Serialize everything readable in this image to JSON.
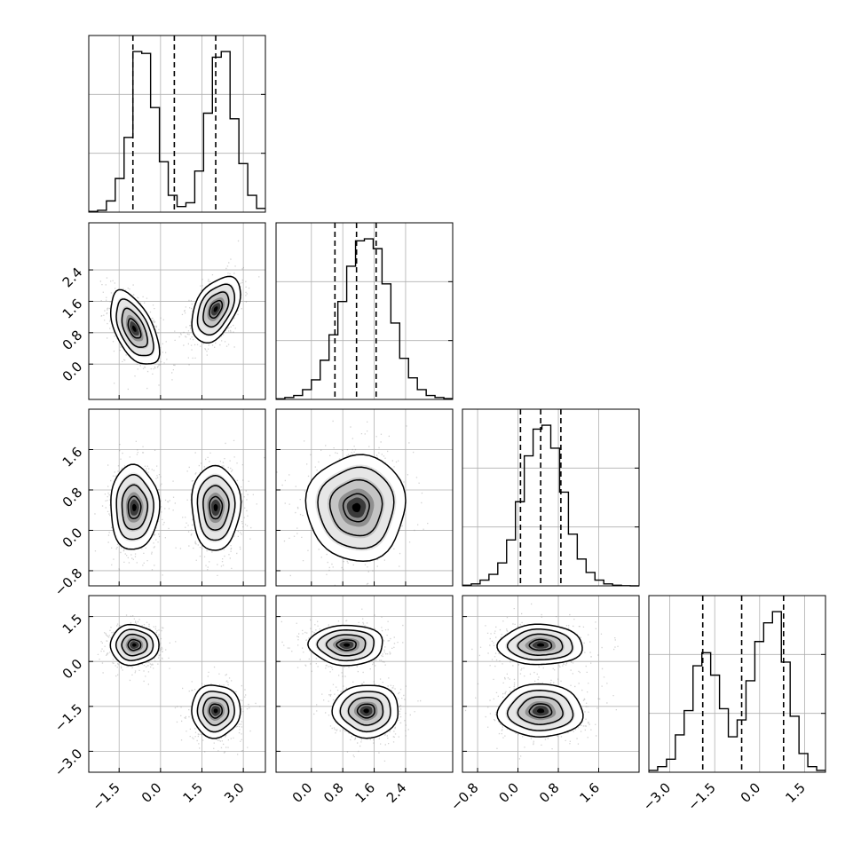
{
  "chart_data": {
    "type": "corner",
    "variables": 4,
    "ranges": [
      [
        -2.6,
        3.8
      ],
      [
        -0.9,
        3.6
      ],
      [
        -1.1,
        2.4
      ],
      [
        -3.7,
        2.2
      ]
    ],
    "ticks": [
      {
        "values": [
          -1.5,
          0.0,
          1.5,
          3.0
        ],
        "labels": [
          "−1.5",
          "0.0",
          "1.5",
          "3.0"
        ]
      },
      {
        "values": [
          0.0,
          0.8,
          1.6,
          2.4
        ],
        "labels": [
          "0.0",
          "0.8",
          "1.6",
          "2.4"
        ]
      },
      {
        "values": [
          -0.8,
          0.0,
          0.8,
          1.6
        ],
        "labels": [
          "−0.8",
          "0.0",
          "0.8",
          "1.6"
        ]
      },
      {
        "values": [
          -3.0,
          -1.5,
          0.0,
          1.5
        ],
        "labels": [
          "−3.0",
          "−1.5",
          "0.0",
          "1.5"
        ]
      }
    ],
    "quantiles": [
      [
        -1.0,
        0.5,
        2.0
      ],
      [
        0.6,
        1.15,
        1.65
      ],
      [
        0.05,
        0.45,
        0.85
      ],
      [
        -1.9,
        -0.6,
        0.8
      ]
    ],
    "histograms": [
      {
        "bins": [
          -2.6,
          -2.28,
          -1.96,
          -1.64,
          -1.32,
          -1.0,
          -0.68,
          -0.36,
          -0.04,
          0.28,
          0.6,
          0.92,
          1.24,
          1.56,
          1.88,
          2.2,
          2.52,
          2.84,
          3.16,
          3.48,
          3.8
        ],
        "counts": [
          0.4,
          1,
          6,
          18,
          40,
          86,
          85,
          56,
          27,
          9,
          3,
          5,
          22,
          53,
          83,
          86,
          50,
          26,
          9,
          2
        ]
      },
      {
        "bins": [
          -0.9,
          -0.675,
          -0.45,
          -0.225,
          0.0,
          0.225,
          0.45,
          0.675,
          0.9,
          1.125,
          1.35,
          1.575,
          1.8,
          2.025,
          2.25,
          2.475,
          2.7,
          2.925,
          3.15,
          3.375,
          3.6
        ],
        "counts": [
          0.3,
          1,
          2,
          5,
          10,
          20,
          33,
          50,
          68,
          81,
          82,
          77,
          59,
          39,
          21,
          11,
          5,
          2,
          1,
          0.4
        ]
      },
      {
        "bins": [
          -1.1,
          -0.925,
          -0.75,
          -0.575,
          -0.4,
          -0.225,
          -0.05,
          0.125,
          0.3,
          0.475,
          0.65,
          0.825,
          1.0,
          1.175,
          1.35,
          1.525,
          1.7,
          1.875,
          2.05,
          2.225,
          2.4
        ],
        "counts": [
          0.3,
          1,
          3,
          6,
          12,
          24,
          44,
          68,
          82,
          84,
          72,
          49,
          27,
          14,
          7,
          3,
          1,
          0.3,
          0.1,
          0
        ]
      },
      {
        "bins": [
          -3.7,
          -3.405,
          -3.11,
          -2.815,
          -2.52,
          -2.225,
          -1.93,
          -1.635,
          -1.34,
          -1.045,
          -0.75,
          -0.455,
          -0.16,
          0.135,
          0.43,
          0.725,
          1.02,
          1.315,
          1.61,
          1.905,
          2.2
        ],
        "counts": [
          1,
          3,
          7,
          20,
          33,
          57,
          64,
          52,
          34,
          19,
          28,
          49,
          70,
          80,
          86,
          59,
          30,
          10,
          3,
          1
        ]
      }
    ],
    "clusters": [
      {
        "mean": [
          -0.95,
          0.9,
          0.45,
          0.55
        ],
        "sd": [
          0.42,
          0.45,
          0.4,
          0.32
        ],
        "corr01": -0.55
      },
      {
        "mean": [
          2.0,
          1.4,
          0.45,
          -1.65
        ],
        "sd": [
          0.42,
          0.4,
          0.4,
          0.42
        ],
        "corr01": 0.45
      }
    ]
  }
}
